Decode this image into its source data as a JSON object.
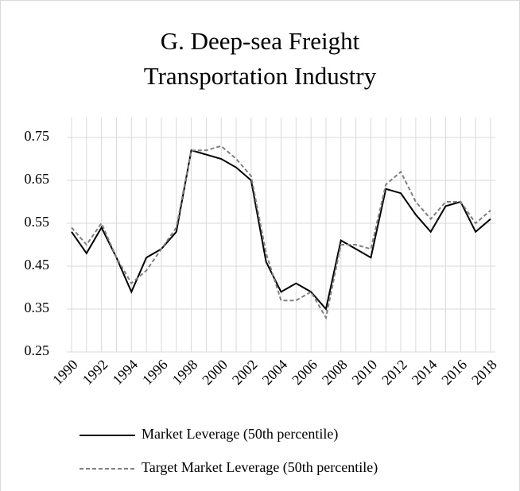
{
  "chart_data": {
    "type": "line",
    "title": "G. Deep-sea Freight Transportation Industry",
    "categories": [
      "1990",
      null,
      "1992",
      null,
      "1994",
      null,
      "1996",
      null,
      "1998",
      null,
      "2000",
      null,
      "2002",
      null,
      "2004",
      null,
      "2006",
      null,
      "2008",
      null,
      "2010",
      null,
      "2012",
      null,
      "2014",
      null,
      "2016",
      null,
      "2018"
    ],
    "series": [
      {
        "name": "Market Leverage (50th percentile)",
        "color": "#000000",
        "values": [
          0.53,
          0.48,
          0.54,
          0.47,
          0.39,
          0.47,
          0.49,
          0.53,
          0.72,
          0.71,
          0.7,
          0.68,
          0.65,
          0.46,
          0.39,
          0.41,
          0.39,
          0.35,
          0.51,
          0.49,
          0.47,
          0.63,
          0.62,
          0.57,
          0.53,
          0.59,
          0.6,
          0.53,
          0.56
        ]
      },
      {
        "name": "Target Market Leverage (50th percentile)",
        "color": "#808080",
        "values": [
          0.54,
          0.5,
          0.55,
          0.47,
          0.41,
          0.44,
          0.49,
          0.54,
          0.72,
          0.72,
          0.73,
          0.7,
          0.66,
          0.48,
          0.37,
          0.37,
          0.39,
          0.33,
          0.5,
          0.5,
          0.49,
          0.64,
          0.67,
          0.6,
          0.56,
          0.6,
          0.6,
          0.55,
          0.58
        ]
      }
    ],
    "ylim": [
      0.25,
      0.75
    ],
    "yticks": [
      0.25,
      0.35,
      0.45,
      0.55,
      0.65,
      0.75
    ],
    "grid": true
  }
}
